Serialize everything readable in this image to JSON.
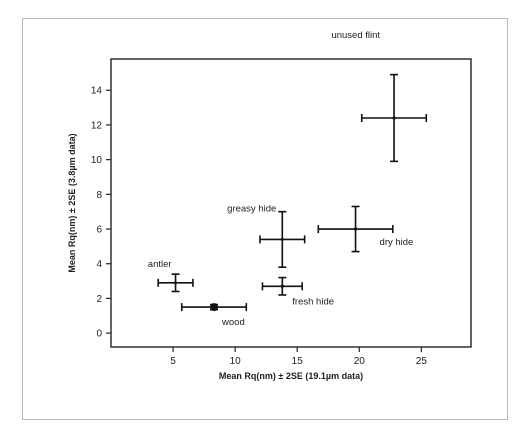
{
  "chart_data": {
    "type": "scatter",
    "xlabel": "Mean Rq(nm) ± 2SE (19.1µm data)",
    "ylabel": "Mean Rq(nm) ± 2SE (3.8µm data)",
    "xlim": [
      0,
      29
    ],
    "ylim": [
      -0.8,
      15.8
    ],
    "x_ticks": [
      5,
      10,
      15,
      20,
      25
    ],
    "y_ticks": [
      0,
      2,
      4,
      6,
      8,
      10,
      12,
      14
    ],
    "grid": false,
    "points": [
      {
        "label": "unused flint",
        "x": 22.8,
        "y": 12.4,
        "x_err": 2.6,
        "y_err": 2.5,
        "marker": "cross"
      },
      {
        "label": "dry hide",
        "x": 19.7,
        "y": 6.0,
        "x_err": 3.0,
        "y_err": 1.3,
        "marker": "cross"
      },
      {
        "label": "greasy hide",
        "x": 13.8,
        "y": 5.4,
        "x_err": 1.8,
        "y_err": 1.6,
        "marker": "cross"
      },
      {
        "label": "fresh hide",
        "x": 13.8,
        "y": 2.7,
        "x_err": 1.6,
        "y_err": 0.5,
        "marker": "cross"
      },
      {
        "label": "antler",
        "x": 5.2,
        "y": 2.9,
        "x_err": 1.4,
        "y_err": 0.5,
        "marker": "cross"
      },
      {
        "label": "wood",
        "x": 8.3,
        "y": 1.5,
        "x_err": 2.6,
        "y_err": 0.15,
        "marker": "filled-circle"
      }
    ]
  }
}
